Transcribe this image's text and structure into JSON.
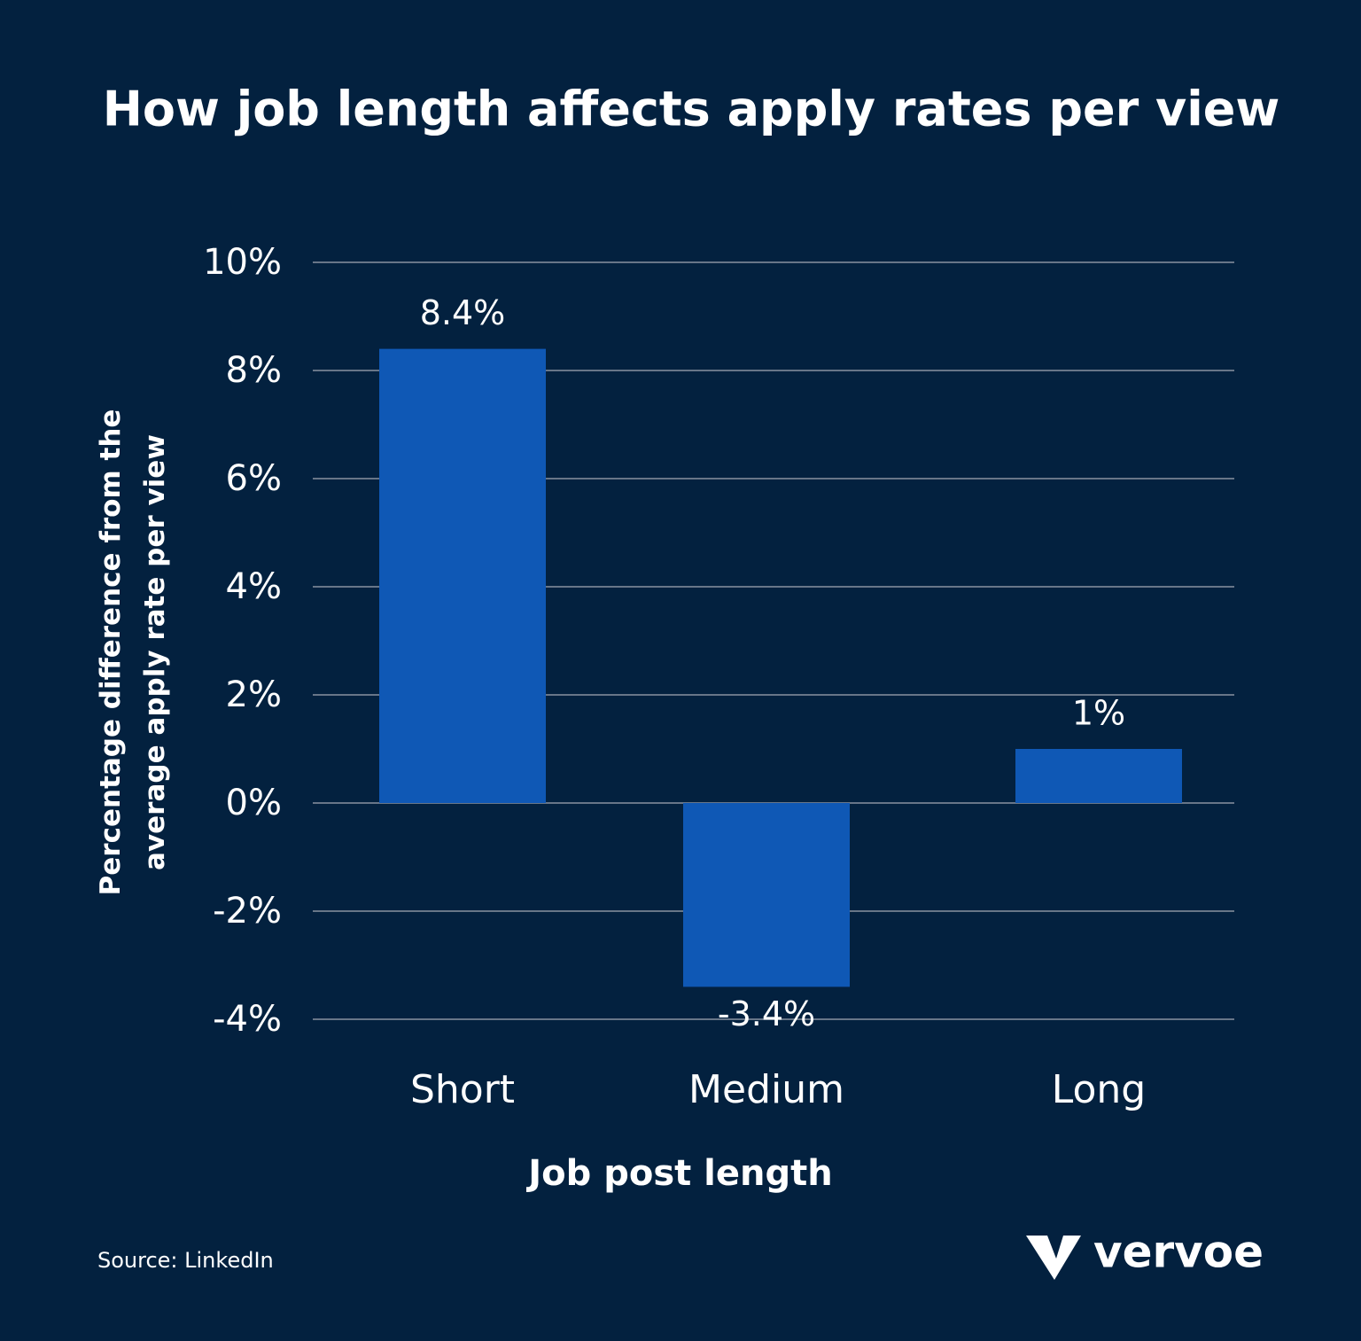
{
  "chart_data": {
    "type": "bar",
    "title": "How job length affects apply rates per view",
    "x_label": "Job post length",
    "y_label": "Percentage difference from the average apply rate per view",
    "categories": [
      "Short",
      "Medium",
      "Long"
    ],
    "values": [
      8.4,
      -3.4,
      1
    ],
    "value_labels": [
      "8.4%",
      "-3.4%",
      "1%"
    ],
    "color": "#0f58b5",
    "ylim": [
      -4,
      10
    ],
    "yticks": [
      {
        "value": -4,
        "label": "-4%"
      },
      {
        "value": -2,
        "label": "-2%"
      },
      {
        "value": 0,
        "label": "0%"
      },
      {
        "value": 2,
        "label": "2%"
      },
      {
        "value": 4,
        "label": "4%"
      },
      {
        "value": 6,
        "label": "6%"
      },
      {
        "value": 8,
        "label": "8%"
      },
      {
        "value": 10,
        "label": "10%"
      }
    ],
    "grid": true,
    "source": "Source: LinkedIn",
    "logo": "vervoe"
  }
}
